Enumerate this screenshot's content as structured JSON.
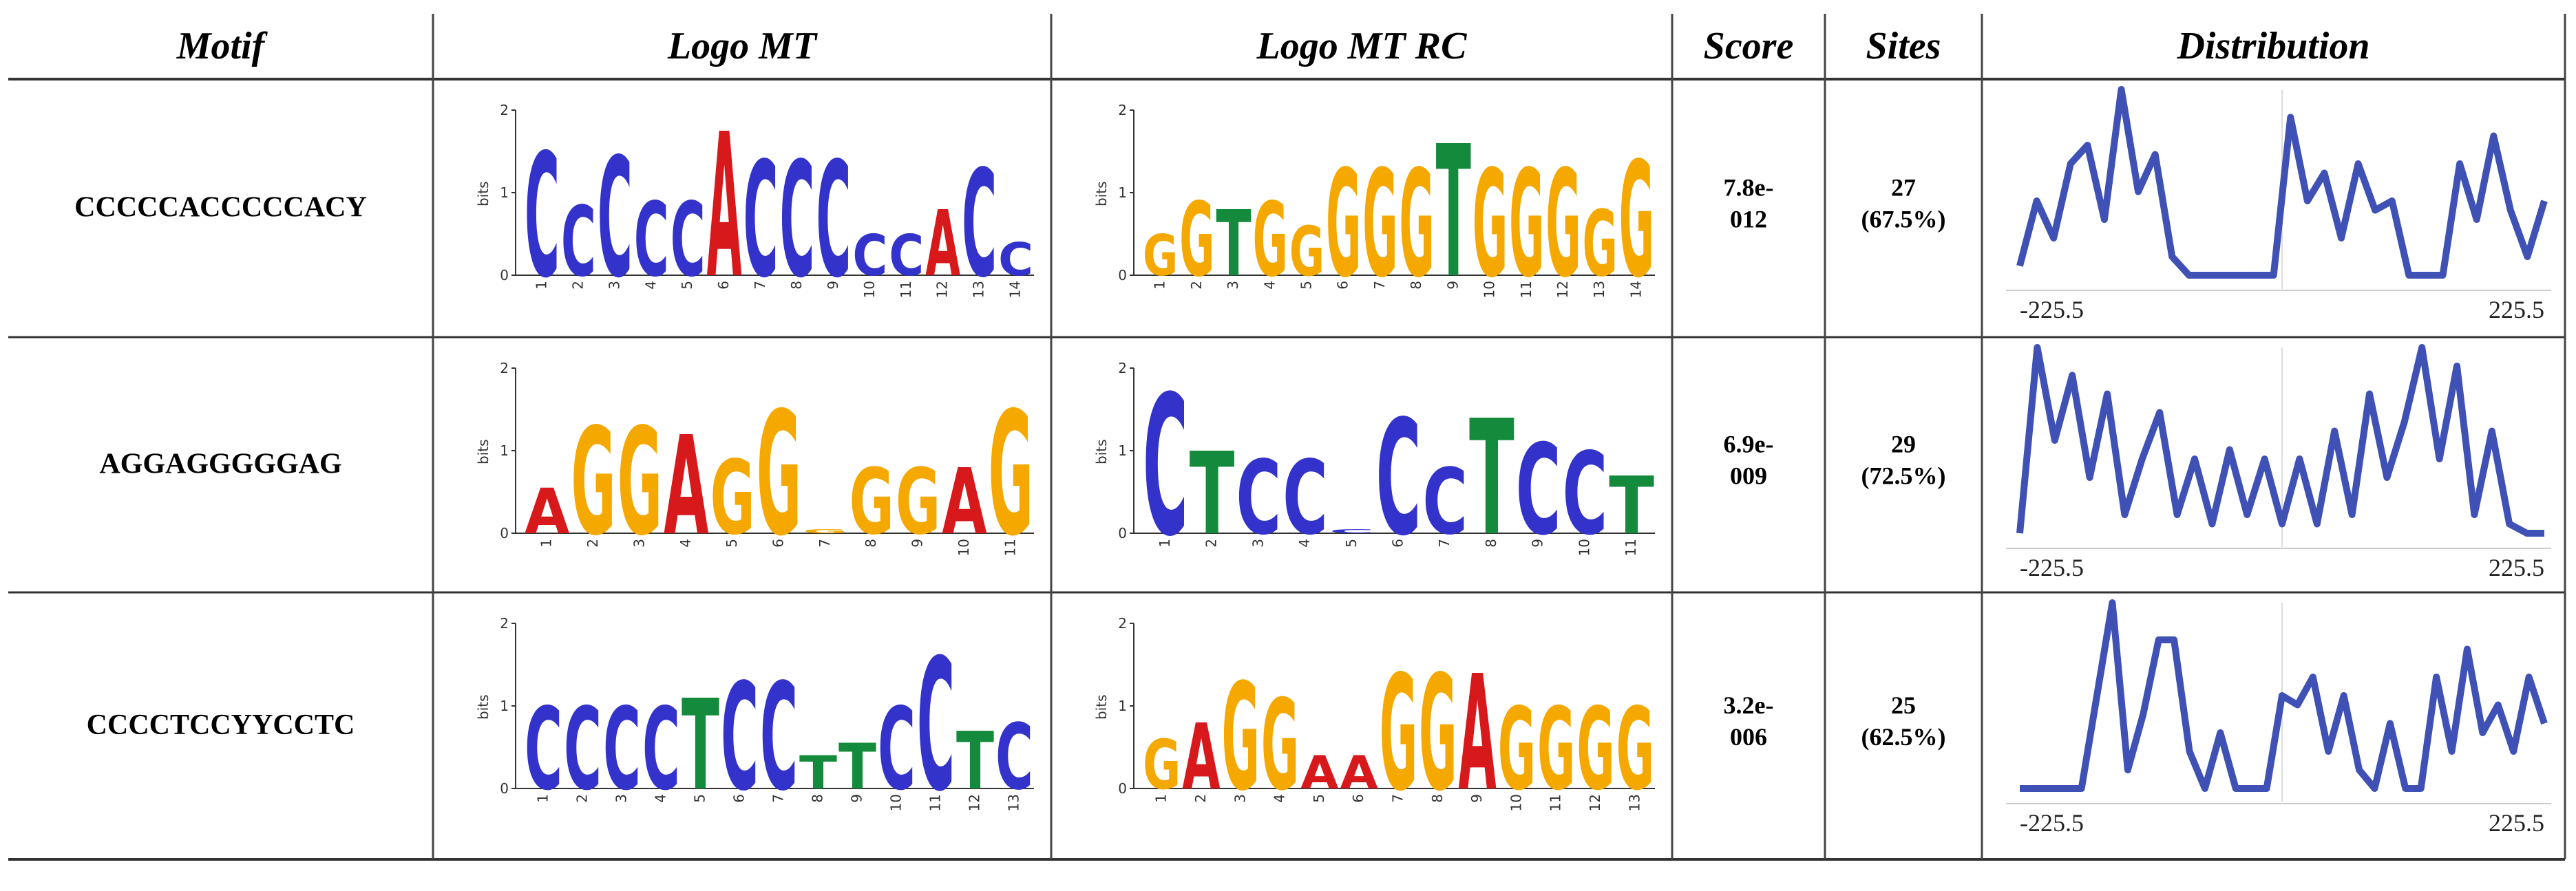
{
  "table": {
    "headers": [
      "Motif",
      "Logo MT",
      "Logo MT RC",
      "Score",
      "Sites",
      "Distribution"
    ],
    "logo_axis": {
      "label": "bits",
      "yticks": [
        0,
        1,
        2
      ],
      "ylim": [
        0,
        2
      ]
    },
    "letter_colors": {
      "A": "#d7191c",
      "C": "#3333cc",
      "G": "#f5a800",
      "T": "#138a3c"
    },
    "rows": [
      {
        "motif": "CCCCCACCCCCACY",
        "logo_mt": {
          "letters": "CCCCCACCCCCACC",
          "heights": [
            1.5,
            0.85,
            1.45,
            0.9,
            0.9,
            1.75,
            1.4,
            1.4,
            1.4,
            0.5,
            0.5,
            0.8,
            1.3,
            0.4
          ],
          "positions": [
            1,
            2,
            3,
            4,
            5,
            6,
            7,
            8,
            9,
            10,
            11,
            12,
            13,
            14
          ]
        },
        "logo_mt_rc": {
          "letters": "GGTGGGGGTGGGGG",
          "heights": [
            0.5,
            0.9,
            0.8,
            0.9,
            0.6,
            1.3,
            1.3,
            1.3,
            1.6,
            1.3,
            1.3,
            1.3,
            0.8,
            1.4
          ],
          "positions": [
            1,
            2,
            3,
            4,
            5,
            6,
            7,
            8,
            9,
            10,
            11,
            12,
            13,
            14
          ]
        },
        "score": [
          "7.8e-",
          "012"
        ],
        "sites": [
          "27",
          "(67.5%)"
        ],
        "distribution": {
          "type": "line",
          "color": "#3f51b5",
          "ylim": [
            0,
            1
          ],
          "xlim": [
            -225.5,
            225.5
          ],
          "xticks": [
            -225.5,
            225.5
          ],
          "values": [
            0.05,
            0.4,
            0.2,
            0.6,
            0.7,
            0.3,
            1.0,
            0.45,
            0.65,
            0.1,
            0,
            0,
            0,
            0,
            0,
            0,
            0.85,
            0.4,
            0.55,
            0.2,
            0.6,
            0.35,
            0.4,
            0,
            0,
            0,
            0.6,
            0.3,
            0.75,
            0.35,
            0.1,
            0.4
          ]
        }
      },
      {
        "motif": "AGGAGGGGGAG",
        "logo_mt": {
          "letters": "AGGAGGGGGAG",
          "heights": [
            0.55,
            1.3,
            1.3,
            1.2,
            0.9,
            1.5,
            0.05,
            0.8,
            0.8,
            0.8,
            1.5
          ],
          "positions": [
            1,
            2,
            3,
            4,
            5,
            6,
            7,
            8,
            9,
            10,
            11
          ]
        },
        "logo_mt_rc": {
          "letters": "CTCCCCCTCCT",
          "heights": [
            1.7,
            1.0,
            0.9,
            0.9,
            0.05,
            1.4,
            0.8,
            1.4,
            1.1,
            1.0,
            0.7
          ],
          "positions": [
            1,
            2,
            3,
            4,
            5,
            6,
            7,
            8,
            9,
            10,
            11
          ]
        },
        "score": [
          "6.9e-",
          "009"
        ],
        "sites": [
          "29",
          "(72.5%)"
        ],
        "distribution": {
          "type": "line",
          "color": "#3f51b5",
          "ylim": [
            0,
            1
          ],
          "xlim": [
            -225.5,
            225.5
          ],
          "xticks": [
            -225.5,
            225.5
          ],
          "values": [
            0,
            1.0,
            0.5,
            0.85,
            0.3,
            0.75,
            0.1,
            0.4,
            0.65,
            0.1,
            0.4,
            0.05,
            0.45,
            0.1,
            0.4,
            0.05,
            0.4,
            0.05,
            0.55,
            0.1,
            0.75,
            0.3,
            0.6,
            1.0,
            0.4,
            0.9,
            0.1,
            0.55,
            0.05,
            0,
            0
          ]
        }
      },
      {
        "motif": "CCCCTCCYYCCTC",
        "logo_mt": {
          "letters": "CCCCTCCTTCCTC",
          "heights": [
            1.0,
            1.0,
            1.0,
            1.0,
            1.1,
            1.3,
            1.3,
            0.4,
            0.55,
            1.0,
            1.6,
            0.7,
            0.8
          ],
          "positions": [
            1,
            2,
            3,
            4,
            5,
            6,
            7,
            8,
            9,
            10,
            11,
            12,
            13
          ]
        },
        "logo_mt_rc": {
          "letters": "GAGGAAGGAGGGG",
          "heights": [
            0.6,
            0.8,
            1.3,
            1.1,
            0.4,
            0.4,
            1.4,
            1.4,
            1.4,
            1.0,
            1.0,
            1.0,
            1.0
          ],
          "positions": [
            1,
            2,
            3,
            4,
            5,
            6,
            7,
            8,
            9,
            10,
            11,
            12,
            13
          ]
        },
        "score": [
          "3.2e-",
          "006"
        ],
        "sites": [
          "25",
          "(62.5%)"
        ],
        "distribution": {
          "type": "line",
          "color": "#3f51b5",
          "ylim": [
            0,
            1
          ],
          "xlim": [
            -225.5,
            225.5
          ],
          "xticks": [
            -225.5,
            225.5
          ],
          "values": [
            0,
            0,
            0,
            0,
            0,
            0.5,
            1.0,
            0.1,
            0.4,
            0.8,
            0.8,
            0.2,
            0,
            0.3,
            0,
            0,
            0,
            0.5,
            0.45,
            0.6,
            0.2,
            0.5,
            0.1,
            0,
            0.35,
            0,
            0,
            0.6,
            0.2,
            0.75,
            0.3,
            0.45,
            0.2,
            0.6,
            0.35
          ]
        }
      }
    ]
  }
}
